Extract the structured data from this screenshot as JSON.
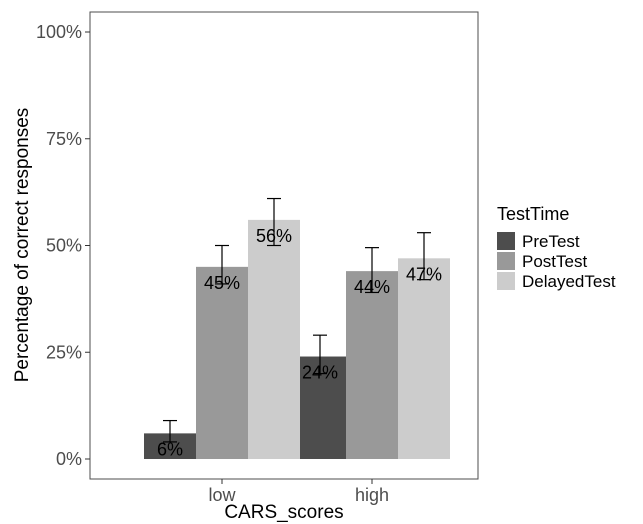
{
  "chart_data": {
    "type": "bar",
    "xlabel": "CARS_scores",
    "ylabel": "Percentage of correct responses",
    "categories": [
      "low",
      "high"
    ],
    "ylim": [
      0,
      100
    ],
    "y_ticks": [
      0,
      25,
      50,
      75,
      100
    ],
    "y_tick_labels": [
      "0%",
      "25%",
      "50%",
      "75%",
      "100%"
    ],
    "grid": false,
    "legend": {
      "title": "TestTime",
      "position": "right"
    },
    "series": [
      {
        "name": "PreTest",
        "color": "#4d4d4d",
        "values": [
          6,
          24
        ],
        "labels": [
          "6%",
          "24%"
        ],
        "error_low": [
          4,
          20
        ],
        "error_high": [
          9,
          29
        ]
      },
      {
        "name": "PostTest",
        "color": "#999999",
        "values": [
          45,
          44
        ],
        "labels": [
          "45%",
          "44%"
        ],
        "error_low": [
          41,
          39
        ],
        "error_high": [
          50,
          49.5
        ]
      },
      {
        "name": "DelayedTest",
        "color": "#cccccc",
        "values": [
          56,
          47
        ],
        "labels": [
          "56%",
          "47%"
        ],
        "error_low": [
          50,
          42
        ],
        "error_high": [
          61,
          53
        ]
      }
    ]
  }
}
